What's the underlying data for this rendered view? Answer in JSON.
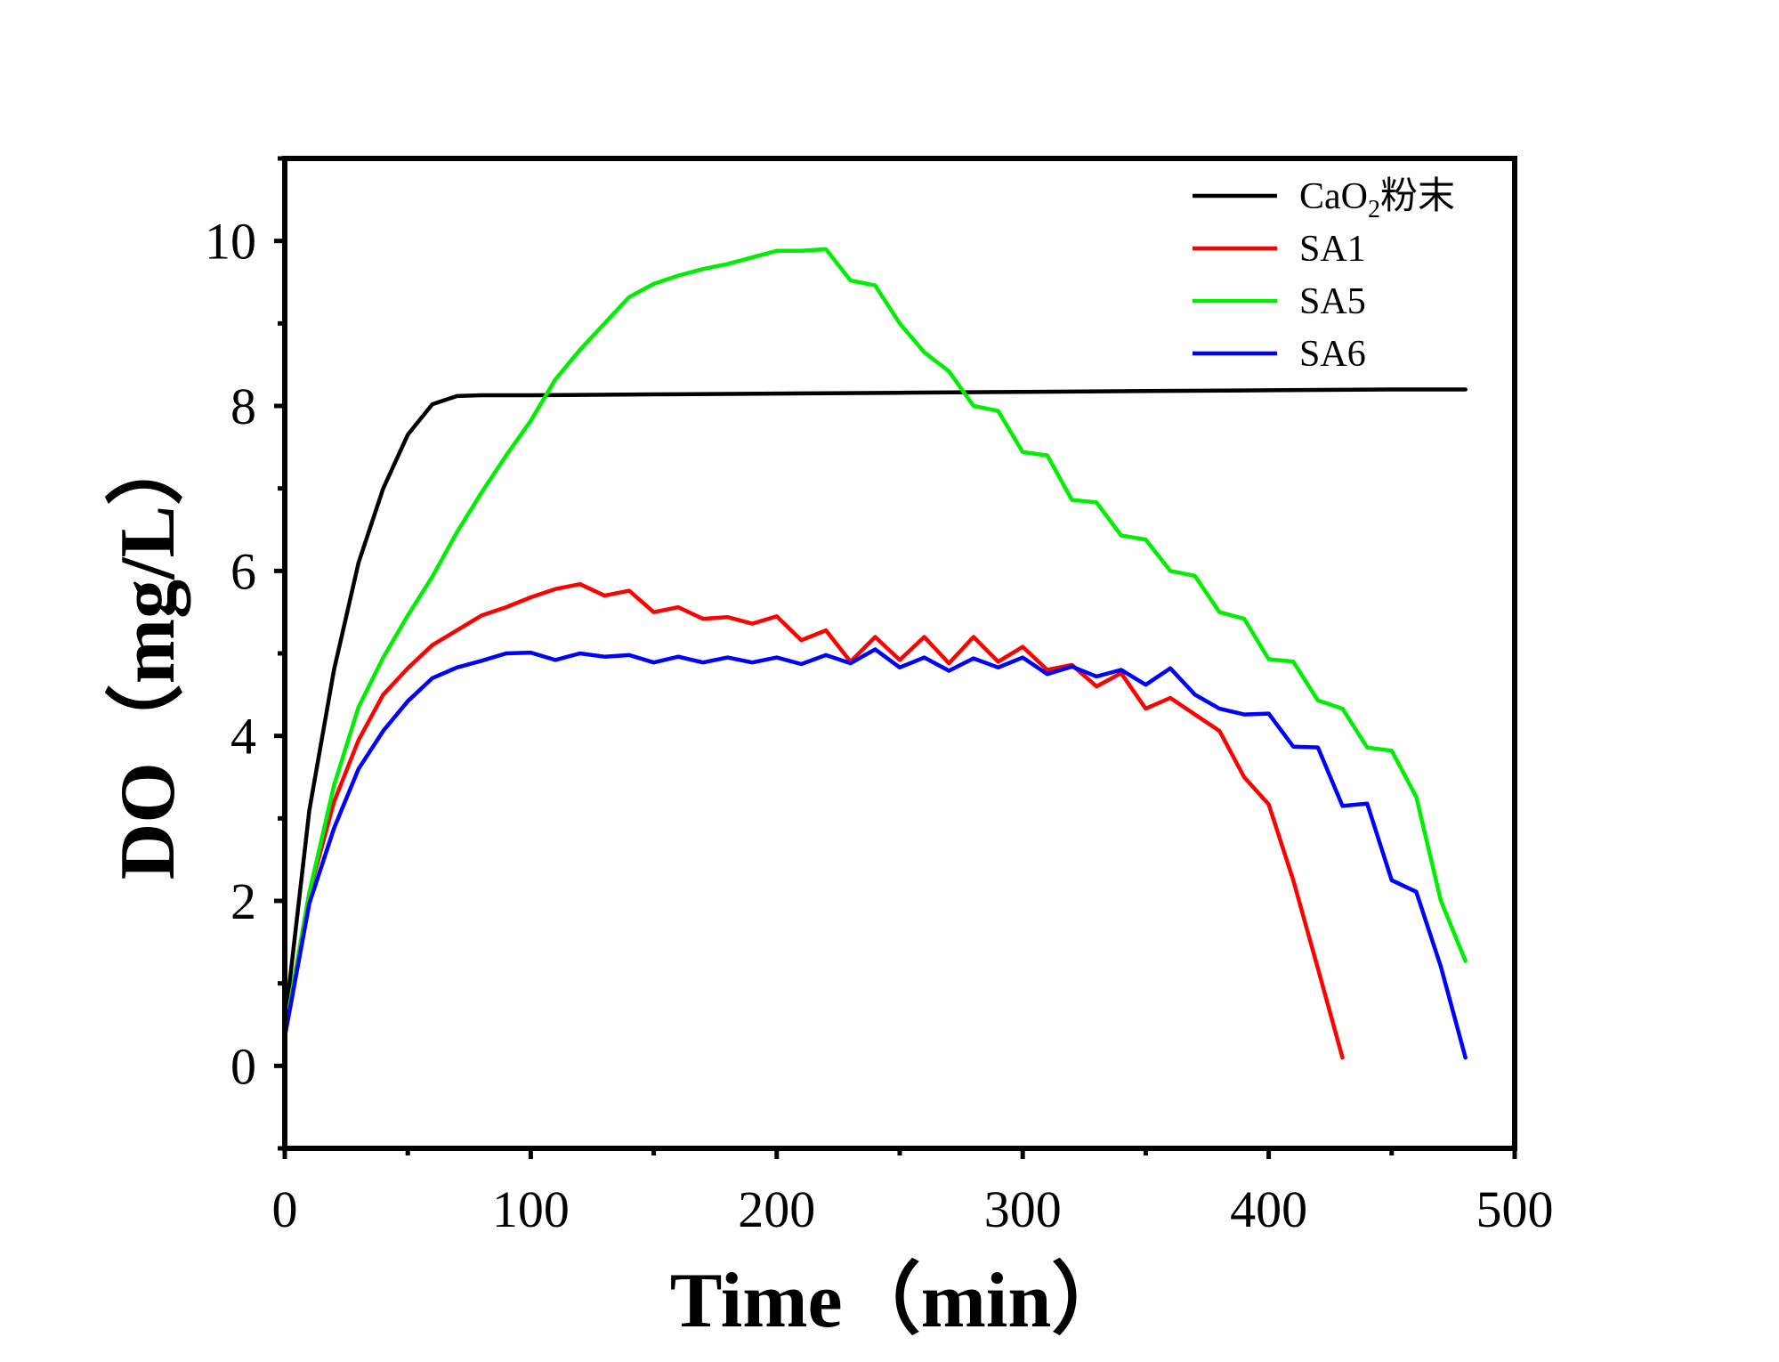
{
  "chart_data": {
    "type": "line",
    "title": "",
    "xlabel": "Time（min）",
    "ylabel": "DO（mg/L）",
    "xlim": [
      0,
      500
    ],
    "ylim": [
      -1,
      11
    ],
    "xticks": [
      0,
      100,
      200,
      300,
      400,
      500
    ],
    "yticks": [
      0,
      2,
      4,
      6,
      8,
      10
    ],
    "xtick_labels": [
      "0",
      "100",
      "200",
      "300",
      "400",
      "500"
    ],
    "ytick_labels": [
      "0",
      "2",
      "4",
      "6",
      "8",
      "10"
    ],
    "grid": false,
    "legend_position": "top-right",
    "series": [
      {
        "name": "CaO2粉末",
        "legend_main": "CaO",
        "legend_sub": "2",
        "legend_suffix": "粉末",
        "color": "#000000",
        "x": [
          0,
          10,
          20,
          30,
          40,
          50,
          60,
          70,
          80,
          100,
          150,
          200,
          250,
          300,
          350,
          400,
          450,
          480
        ],
        "y": [
          0.5,
          3.1,
          4.8,
          6.1,
          7.0,
          7.65,
          8.02,
          8.12,
          8.13,
          8.13,
          8.14,
          8.15,
          8.16,
          8.17,
          8.18,
          8.19,
          8.2,
          8.2
        ]
      },
      {
        "name": "SA1",
        "color": "#ff0000",
        "x": [
          0,
          10,
          20,
          30,
          40,
          50,
          60,
          70,
          80,
          90,
          100,
          110,
          120,
          130,
          140,
          150,
          160,
          170,
          180,
          190,
          200,
          210,
          220,
          230,
          240,
          250,
          260,
          270,
          280,
          290,
          300,
          310,
          320,
          330,
          340,
          350,
          360,
          370,
          380,
          390,
          400,
          410,
          420,
          430
        ],
        "y": [
          0.4,
          2.1,
          3.2,
          3.95,
          4.5,
          4.82,
          5.1,
          5.28,
          5.46,
          5.56,
          5.68,
          5.78,
          5.84,
          5.7,
          5.76,
          5.5,
          5.56,
          5.42,
          5.44,
          5.36,
          5.45,
          5.16,
          5.28,
          4.9,
          5.2,
          4.92,
          5.2,
          4.88,
          5.2,
          4.9,
          5.08,
          4.8,
          4.86,
          4.6,
          4.76,
          4.33,
          4.46,
          4.26,
          4.06,
          3.5,
          3.17,
          2.25,
          1.18,
          0.1
        ]
      },
      {
        "name": "SA5",
        "color": "#00ee00",
        "x": [
          0,
          10,
          20,
          30,
          40,
          50,
          60,
          70,
          80,
          90,
          100,
          110,
          120,
          130,
          140,
          150,
          160,
          170,
          180,
          190,
          200,
          210,
          220,
          230,
          240,
          250,
          260,
          270,
          280,
          290,
          300,
          310,
          320,
          330,
          340,
          350,
          360,
          370,
          380,
          390,
          400,
          410,
          420,
          430,
          440,
          450,
          460,
          470,
          480
        ],
        "y": [
          0.4,
          2.1,
          3.4,
          4.35,
          4.95,
          5.46,
          5.93,
          6.47,
          6.95,
          7.4,
          7.82,
          8.32,
          8.68,
          9.0,
          9.32,
          9.48,
          9.58,
          9.66,
          9.72,
          9.8,
          9.88,
          9.88,
          9.9,
          9.52,
          9.46,
          9.0,
          8.65,
          8.42,
          8.0,
          7.94,
          7.44,
          7.4,
          6.86,
          6.83,
          6.43,
          6.38,
          6.0,
          5.94,
          5.5,
          5.42,
          4.93,
          4.9,
          4.43,
          4.33,
          3.86,
          3.82,
          3.26,
          2.0,
          1.27
        ]
      },
      {
        "name": "SA6",
        "color": "#0000ff",
        "x": [
          0,
          10,
          20,
          30,
          40,
          50,
          60,
          70,
          80,
          90,
          100,
          110,
          120,
          130,
          140,
          150,
          160,
          170,
          180,
          190,
          200,
          210,
          220,
          230,
          240,
          250,
          260,
          270,
          280,
          290,
          300,
          310,
          320,
          330,
          340,
          350,
          360,
          370,
          380,
          390,
          400,
          410,
          420,
          430,
          440,
          450,
          460,
          470,
          480
        ],
        "y": [
          0.35,
          1.97,
          2.88,
          3.6,
          4.06,
          4.42,
          4.7,
          4.83,
          4.91,
          5.0,
          5.01,
          4.92,
          5.0,
          4.96,
          4.98,
          4.89,
          4.96,
          4.89,
          4.95,
          4.89,
          4.95,
          4.87,
          4.98,
          4.88,
          5.05,
          4.83,
          4.95,
          4.79,
          4.94,
          4.83,
          4.95,
          4.75,
          4.84,
          4.72,
          4.8,
          4.62,
          4.82,
          4.5,
          4.33,
          4.26,
          4.27,
          3.87,
          3.86,
          3.15,
          3.18,
          2.25,
          2.11,
          1.2,
          0.1
        ]
      }
    ]
  }
}
